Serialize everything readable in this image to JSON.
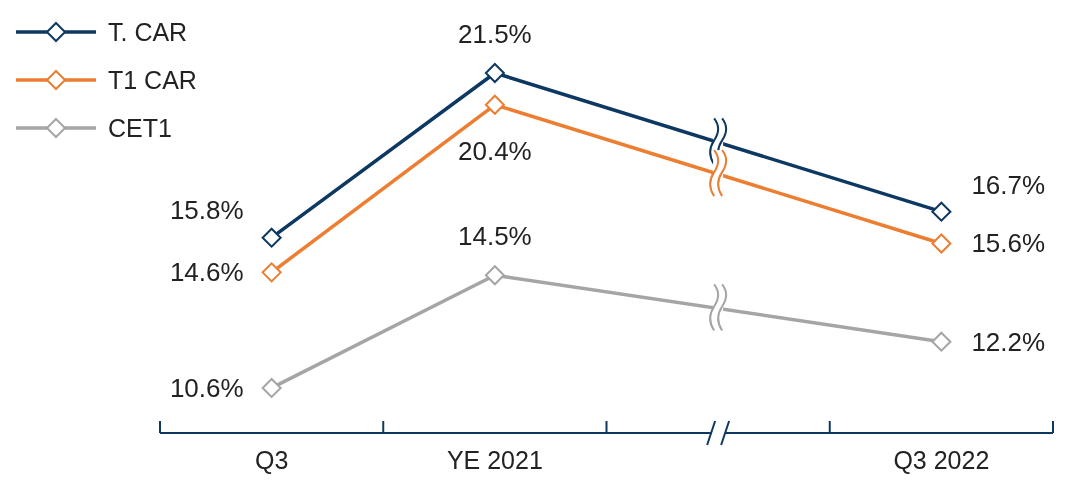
{
  "chart_data": {
    "type": "line",
    "categories": [
      "Q3",
      "YE 2021",
      null,
      "Q3 2022"
    ],
    "series": [
      {
        "name": "T. CAR",
        "color": "#0d3862",
        "values": [
          15.8,
          21.5,
          null,
          16.7
        ],
        "value_labels": [
          "15.8%",
          "21.5%",
          null,
          "16.7%"
        ]
      },
      {
        "name": "T1 CAR",
        "color": "#ed7d31",
        "values": [
          14.6,
          20.4,
          null,
          15.6
        ],
        "value_labels": [
          "14.6%",
          "20.4%",
          null,
          "15.6%"
        ]
      },
      {
        "name": "CET1",
        "color": "#a5a5a5",
        "values": [
          10.6,
          14.5,
          null,
          12.2
        ],
        "value_labels": [
          "10.6%",
          "14.5%",
          null,
          "12.2%"
        ]
      }
    ],
    "marker": "diamond",
    "line_style": "solid",
    "legend": "top left",
    "grid": false
  }
}
